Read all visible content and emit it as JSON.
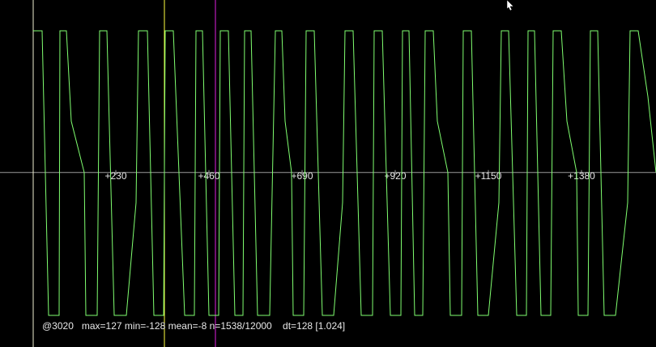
{
  "chart_data": {
    "type": "line",
    "x": [
      26,
      48,
      64,
      90,
      92,
      108,
      120,
      152,
      156,
      184,
      190,
      208,
      226,
      256,
      280,
      286,
      308,
      324,
      348,
      352,
      372,
      400,
      424,
      428,
      444,
      460,
      484,
      488,
      508,
      524,
      544,
      548,
      564,
      580,
      610,
      624,
      640,
      648,
      664,
      668,
      694,
      700,
      720,
      740,
      768,
      790,
      796,
      816,
      836,
      864,
      868,
      888,
      908,
      934,
      938,
      954,
      968,
      988,
      994,
      1014,
      1024,
      1050,
      1056,
      1084,
      1088,
      1108,
      1124,
      1150,
      1176,
      1182,
      1200,
      1220,
      1244,
      1248,
      1264,
      1280,
      1304,
      1310,
      1330,
      1344,
      1368,
      1372,
      1396,
      1402,
      1420,
      1436,
      1464,
      1494,
      1500,
      1520,
      1544,
      1564
    ],
    "values": [
      127,
      127,
      -128,
      -128,
      127,
      127,
      46,
      0,
      -128,
      -128,
      127,
      127,
      -128,
      -128,
      -27,
      127,
      127,
      -128,
      -128,
      127,
      127,
      -128,
      -128,
      127,
      127,
      -128,
      -128,
      127,
      127,
      -128,
      -128,
      127,
      127,
      -128,
      -128,
      127,
      127,
      46,
      0,
      -128,
      -128,
      127,
      127,
      -128,
      -128,
      -27,
      127,
      127,
      -128,
      -128,
      127,
      127,
      -128,
      -128,
      127,
      127,
      -128,
      -128,
      127,
      127,
      46,
      0,
      -128,
      -128,
      127,
      127,
      -128,
      -128,
      -27,
      127,
      127,
      -128,
      -128,
      127,
      127,
      -128,
      -128,
      127,
      127,
      46,
      0,
      -128,
      -128,
      127,
      127,
      -128,
      -128,
      -27,
      127,
      127,
      68,
      0
    ],
    "color": "#80ff70",
    "xlim": [
      0,
      1564
    ],
    "ylim": [
      -128,
      127
    ],
    "xticks": [
      {
        "value": 230,
        "label": "+230"
      },
      {
        "value": 460,
        "label": "+460"
      },
      {
        "value": 690,
        "label": "+690"
      },
      {
        "value": 920,
        "label": "+920"
      },
      {
        "value": 1150,
        "label": "+1150"
      },
      {
        "value": 1380,
        "label": "+1380"
      }
    ],
    "status": "@3020   max=127 min=-128 mean=-8 n=1538/12000    dt=128 [1.024]"
  }
}
